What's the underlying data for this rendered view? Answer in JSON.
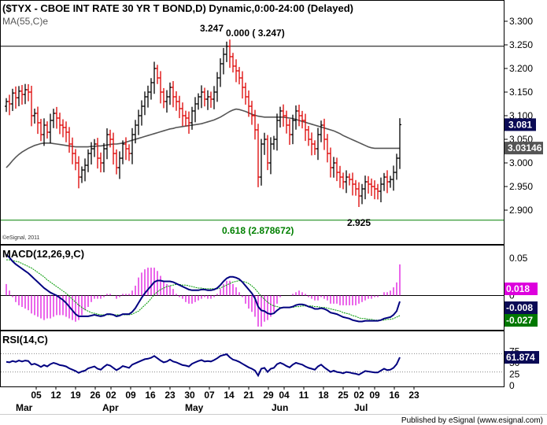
{
  "chart_data": [
    {
      "type": "ohlc",
      "panel": "price",
      "title": "($TYX - CBOE INT RATE 30 YR T BOND,D) Dynamic,0:00-24:00 (Delayed)",
      "indicator_label": "MA(55,C)e",
      "watermark": "©eSignal, 2011",
      "ylim": [
        2.865,
        3.325
      ],
      "yticks": [
        "3.300",
        "3.250",
        "3.200",
        "3.150",
        "3.100",
        "3.050",
        "3.000",
        "2.950",
        "2.900"
      ],
      "fib_lines": [
        {
          "value": 3.247,
          "label": "0.000 ( 3.247)",
          "color": "#000000"
        },
        {
          "value": 2.878672,
          "label": "0.618 (2.878672)",
          "color": "#008000"
        }
      ],
      "annotations": [
        {
          "text": "3.247",
          "bar": 70
        },
        {
          "text": "2.925",
          "bar": 112
        }
      ],
      "last_price": {
        "label": "3.081",
        "value": 3.081
      },
      "ma_price": {
        "label": "3.03146",
        "value": 3.03146
      },
      "colors": {
        "up": "#000000",
        "down": "#dd0000",
        "ma": "#555555",
        "last_bg": "#0a0a55"
      },
      "closes": [
        3.13,
        3.125,
        3.148,
        3.138,
        3.152,
        3.145,
        3.155,
        3.15,
        3.1,
        3.105,
        3.085,
        3.06,
        3.08,
        3.065,
        3.09,
        3.105,
        3.095,
        3.08,
        3.075,
        3.065,
        3.04,
        3.02,
        3.0,
        2.97,
        2.985,
        2.995,
        3.02,
        3.03,
        3.04,
        3.01,
        3.0,
        3.03,
        3.06,
        3.05,
        3.02,
        2.99,
        3.01,
        3.04,
        3.03,
        3.02,
        3.06,
        3.08,
        3.1,
        3.12,
        3.14,
        3.15,
        3.17,
        3.2,
        3.18,
        3.15,
        3.13,
        3.14,
        3.16,
        3.14,
        3.13,
        3.115,
        3.1,
        3.095,
        3.085,
        3.11,
        3.125,
        3.14,
        3.15,
        3.135,
        3.14,
        3.135,
        3.15,
        3.18,
        3.21,
        3.23,
        3.247,
        3.225,
        3.205,
        3.195,
        3.18,
        3.16,
        3.14,
        3.12,
        3.1,
        3.07,
        2.97,
        3.04,
        3.05,
        3.0,
        3.04,
        3.05,
        3.09,
        3.11,
        3.1,
        3.08,
        3.06,
        3.09,
        3.11,
        3.1,
        3.09,
        3.07,
        3.05,
        3.04,
        3.03,
        3.06,
        3.08,
        3.05,
        3.02,
        2.99,
        3.0,
        2.98,
        2.97,
        2.96,
        2.97,
        2.965,
        2.955,
        2.945,
        2.93,
        2.945,
        2.96,
        2.955,
        2.95,
        2.945,
        2.94,
        2.955,
        2.97,
        2.96,
        2.965,
        2.98,
        3.01,
        3.081
      ],
      "ma55": [
        2.99,
        2.997,
        3.005,
        3.012,
        3.018,
        3.023,
        3.027,
        3.031,
        3.034,
        3.037,
        3.039,
        3.041,
        3.042,
        3.042,
        3.042,
        3.041,
        3.04,
        3.039,
        3.038,
        3.037,
        3.036,
        3.035,
        3.034,
        3.034,
        3.034,
        3.034,
        3.034,
        3.035,
        3.035,
        3.036,
        3.036,
        3.037,
        3.038,
        3.039,
        3.04,
        3.04,
        3.041,
        3.042,
        3.044,
        3.046,
        3.048,
        3.05,
        3.052,
        3.054,
        3.056,
        3.058,
        3.06,
        3.062,
        3.064,
        3.066,
        3.068,
        3.07,
        3.072,
        3.073,
        3.075,
        3.076,
        3.077,
        3.078,
        3.079,
        3.08,
        3.081,
        3.082,
        3.083,
        3.085,
        3.087,
        3.089,
        3.091,
        3.094,
        3.097,
        3.101,
        3.105,
        3.109,
        3.112,
        3.114,
        3.113,
        3.111,
        3.109,
        3.106,
        3.103,
        3.101,
        3.099,
        3.098,
        3.097,
        3.097,
        3.097,
        3.097,
        3.097,
        3.097,
        3.097,
        3.096,
        3.095,
        3.094,
        3.092,
        3.09,
        3.088,
        3.086,
        3.084,
        3.082,
        3.08,
        3.078,
        3.076,
        3.074,
        3.072,
        3.07,
        3.068,
        3.065,
        3.062,
        3.058,
        3.055,
        3.052,
        3.049,
        3.046,
        3.043,
        3.04,
        3.037,
        3.034,
        3.032,
        3.031,
        3.031,
        3.031,
        3.031,
        3.031,
        3.031,
        3.031,
        3.031,
        3.031
      ]
    },
    {
      "type": "line",
      "panel": "macd",
      "title": "MACD(12,26,9,C)",
      "ylim": [
        -0.045,
        0.065
      ],
      "yticks": [
        "0.05",
        "0"
      ],
      "last_values": [
        {
          "label": "0.018",
          "series": "histogram",
          "bg": "#dd00dd"
        },
        {
          "label": "-0.008",
          "series": "macd",
          "bg": "#0a0a55"
        },
        {
          "label": "-0.027",
          "series": "signal",
          "bg": "#007700"
        }
      ],
      "series": [
        {
          "name": "MACD",
          "color": "#000080",
          "values": [
            0.055,
            0.051,
            0.046,
            0.042,
            0.039,
            0.036,
            0.033,
            0.03,
            0.026,
            0.022,
            0.018,
            0.014,
            0.01,
            0.007,
            0.004,
            0.002,
            0.0,
            -0.003,
            -0.006,
            -0.01,
            -0.015,
            -0.02,
            -0.025,
            -0.028,
            -0.028,
            -0.028,
            -0.028,
            -0.027,
            -0.026,
            -0.027,
            -0.028,
            -0.027,
            -0.025,
            -0.025,
            -0.026,
            -0.028,
            -0.027,
            -0.025,
            -0.025,
            -0.025,
            -0.022,
            -0.017,
            -0.01,
            -0.003,
            0.003,
            0.008,
            0.013,
            0.018,
            0.02,
            0.02,
            0.019,
            0.019,
            0.019,
            0.018,
            0.016,
            0.014,
            0.012,
            0.01,
            0.008,
            0.007,
            0.007,
            0.007,
            0.008,
            0.008,
            0.007,
            0.007,
            0.008,
            0.01,
            0.014,
            0.019,
            0.023,
            0.025,
            0.025,
            0.024,
            0.022,
            0.018,
            0.013,
            0.008,
            0.003,
            -0.004,
            -0.015,
            -0.02,
            -0.021,
            -0.024,
            -0.025,
            -0.024,
            -0.02,
            -0.017,
            -0.016,
            -0.016,
            -0.016,
            -0.015,
            -0.013,
            -0.012,
            -0.012,
            -0.013,
            -0.015,
            -0.016,
            -0.018,
            -0.018,
            -0.017,
            -0.018,
            -0.02,
            -0.023,
            -0.024,
            -0.025,
            -0.027,
            -0.029,
            -0.03,
            -0.031,
            -0.033,
            -0.034,
            -0.035,
            -0.035,
            -0.034,
            -0.034,
            -0.034,
            -0.034,
            -0.034,
            -0.033,
            -0.031,
            -0.03,
            -0.029,
            -0.026,
            -0.021,
            -0.008
          ]
        },
        {
          "name": "Signal",
          "color": "#009900",
          "values": [
            0.048,
            0.048,
            0.047,
            0.046,
            0.045,
            0.043,
            0.041,
            0.039,
            0.037,
            0.034,
            0.031,
            0.028,
            0.025,
            0.021,
            0.018,
            0.015,
            0.012,
            0.009,
            0.006,
            0.003,
            -0.001,
            -0.005,
            -0.009,
            -0.013,
            -0.016,
            -0.019,
            -0.021,
            -0.023,
            -0.024,
            -0.025,
            -0.026,
            -0.026,
            -0.026,
            -0.026,
            -0.026,
            -0.026,
            -0.026,
            -0.026,
            -0.026,
            -0.026,
            -0.025,
            -0.023,
            -0.021,
            -0.017,
            -0.013,
            -0.009,
            -0.004,
            0.001,
            0.005,
            0.008,
            0.01,
            0.012,
            0.013,
            0.014,
            0.015,
            0.015,
            0.014,
            0.014,
            0.013,
            0.012,
            0.011,
            0.01,
            0.01,
            0.009,
            0.009,
            0.009,
            0.009,
            0.009,
            0.01,
            0.012,
            0.014,
            0.016,
            0.018,
            0.019,
            0.02,
            0.019,
            0.018,
            0.016,
            0.013,
            0.009,
            0.004,
            -0.001,
            -0.005,
            -0.009,
            -0.012,
            -0.014,
            -0.015,
            -0.016,
            -0.016,
            -0.016,
            -0.016,
            -0.016,
            -0.015,
            -0.015,
            -0.014,
            -0.014,
            -0.014,
            -0.014,
            -0.015,
            -0.015,
            -0.016,
            -0.016,
            -0.017,
            -0.018,
            -0.019,
            -0.02,
            -0.021,
            -0.023,
            -0.024,
            -0.025,
            -0.027,
            -0.028,
            -0.03,
            -0.031,
            -0.031,
            -0.032,
            -0.032,
            -0.033,
            -0.033,
            -0.033,
            -0.033,
            -0.032,
            -0.032,
            -0.031,
            -0.029,
            -0.027
          ]
        }
      ]
    },
    {
      "type": "line",
      "panel": "rsi",
      "title": "RSI(14,C)",
      "ylim": [
        0,
        100
      ],
      "yticks": [
        "75",
        "50",
        "25",
        "0"
      ],
      "guide_levels": [
        70,
        30
      ],
      "last_value": {
        "label": "61.874",
        "bg": "#0a0a55"
      },
      "series": [
        {
          "name": "RSI",
          "color": "#000080",
          "values": [
            52,
            51,
            54,
            52,
            55,
            53,
            55,
            54,
            46,
            48,
            45,
            41,
            45,
            42,
            47,
            50,
            48,
            45,
            44,
            42,
            38,
            35,
            32,
            28,
            31,
            33,
            38,
            40,
            42,
            37,
            35,
            41,
            46,
            44,
            39,
            34,
            38,
            43,
            41,
            39,
            46,
            49,
            52,
            55,
            58,
            59,
            61,
            65,
            60,
            55,
            51,
            53,
            57,
            53,
            51,
            48,
            45,
            44,
            42,
            48,
            51,
            54,
            56,
            53,
            54,
            53,
            56,
            60,
            65,
            67,
            69,
            62,
            57,
            55,
            52,
            48,
            44,
            40,
            37,
            33,
            22,
            37,
            39,
            30,
            37,
            39,
            47,
            50,
            47,
            43,
            40,
            46,
            50,
            48,
            46,
            42,
            39,
            37,
            35,
            42,
            46,
            40,
            35,
            30,
            33,
            30,
            29,
            27,
            30,
            29,
            27,
            26,
            24,
            28,
            32,
            31,
            30,
            29,
            29,
            33,
            37,
            34,
            35,
            39,
            47,
            62
          ]
        }
      ]
    }
  ],
  "x_axis": {
    "day_ticks": [
      {
        "label": "05",
        "bar": 5
      },
      {
        "label": "12",
        "bar": 10
      },
      {
        "label": "19",
        "bar": 15
      },
      {
        "label": "26",
        "bar": 20
      },
      {
        "label": "02",
        "bar": 24
      },
      {
        "label": "09",
        "bar": 29
      },
      {
        "label": "16",
        "bar": 34
      },
      {
        "label": "23",
        "bar": 39
      },
      {
        "label": "30",
        "bar": 44
      },
      {
        "label": "07",
        "bar": 49
      },
      {
        "label": "14",
        "bar": 54
      },
      {
        "label": "21",
        "bar": 59
      },
      {
        "label": "29",
        "bar": 64
      },
      {
        "label": "04",
        "bar": 68
      },
      {
        "label": "11",
        "bar": 73
      },
      {
        "label": "18",
        "bar": 78
      },
      {
        "label": "25",
        "bar": 83
      },
      {
        "label": "02",
        "bar": 87
      },
      {
        "label": "09",
        "bar": 91
      },
      {
        "label": "16",
        "bar": 96
      },
      {
        "label": "23",
        "bar": 101
      }
    ],
    "month_ticks": [
      {
        "label": "Mar",
        "bar": 1
      },
      {
        "label": "Apr",
        "bar": 23
      },
      {
        "label": "May",
        "bar": 44
      },
      {
        "label": "Jun",
        "bar": 66
      },
      {
        "label": "Jul",
        "bar": 87
      }
    ]
  },
  "footer": {
    "credit": "Published by eSignal (www.esignal.com)"
  }
}
